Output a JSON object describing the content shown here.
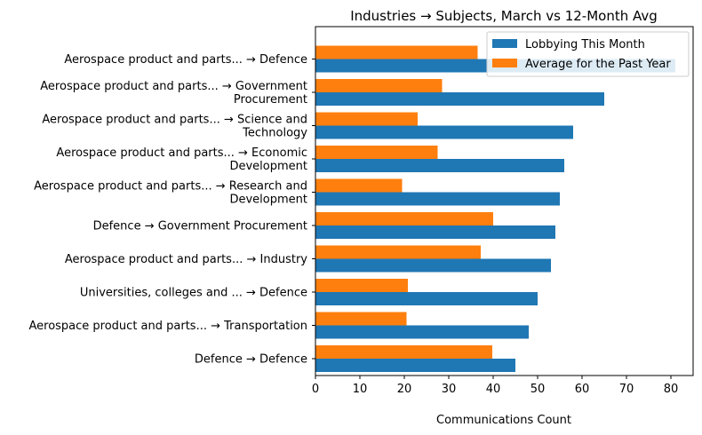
{
  "chart_data": {
    "type": "bar",
    "orientation": "horizontal",
    "title": "Industries → Subjects, March vs 12-Month Avg",
    "xlabel": "Communications Count",
    "ylabel": "",
    "xlim": [
      0,
      85
    ],
    "xticks": [
      0,
      10,
      20,
      30,
      40,
      50,
      60,
      70,
      80
    ],
    "grid": false,
    "legend_position": "top-right",
    "categories": [
      [
        "Aerospace product and parts... → Defence"
      ],
      [
        "Aerospace product and parts... → Government",
        "Procurement"
      ],
      [
        "Aerospace product and parts... → Science and",
        "Technology"
      ],
      [
        "Aerospace product and parts... → Economic",
        "Development"
      ],
      [
        "Aerospace product and parts... → Research and",
        "Development"
      ],
      [
        "Defence → Government Procurement"
      ],
      [
        "Aerospace product and parts... → Industry"
      ],
      [
        "Universities, colleges and ... → Defence"
      ],
      [
        "Aerospace product and parts... → Transportation"
      ],
      [
        "Defence → Defence"
      ]
    ],
    "series": [
      {
        "name": "Lobbying This Month",
        "color": "#1f77b4",
        "values": [
          81,
          65,
          58,
          56,
          55,
          54,
          53,
          50,
          48,
          45
        ]
      },
      {
        "name": "Average for the Past Year",
        "color": "#ff7f0e",
        "values": [
          36.5,
          28.5,
          23,
          27.5,
          19.5,
          40,
          37.2,
          20.8,
          20.5,
          39.8
        ]
      }
    ]
  }
}
